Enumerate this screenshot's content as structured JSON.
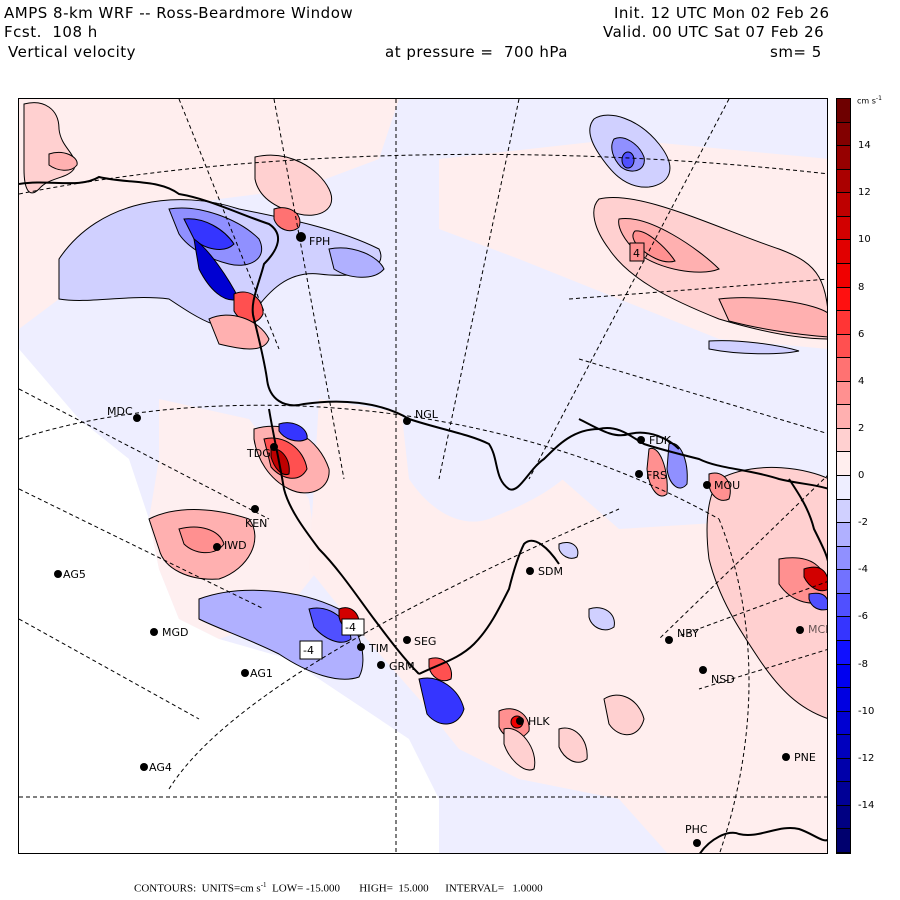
{
  "header": {
    "title": "AMPS 8-km WRF -- Ross-Beardmore Window",
    "forecast": "Fcst.  108 h",
    "variable": "Vertical velocity",
    "pressure": "at pressure =  700 hPa",
    "init": "Init. 12 UTC Mon 02 Feb 26",
    "valid": "Valid. 00 UTC Sat 07 Feb 26",
    "smoothing": "sm= 5"
  },
  "colorbar": {
    "units": "cm s",
    "units_exp": "-1",
    "levels": [
      {
        "value": 16,
        "color": "#6e0000"
      },
      {
        "value": 15,
        "color": "#820000"
      },
      {
        "value": 14,
        "color": "#960000"
      },
      {
        "value": 13,
        "color": "#aa0000"
      },
      {
        "value": 12,
        "color": "#be0000"
      },
      {
        "value": 11,
        "color": "#d20000"
      },
      {
        "value": 10,
        "color": "#e10000"
      },
      {
        "value": 9,
        "color": "#f00000"
      },
      {
        "value": 8,
        "color": "#ff1010"
      },
      {
        "value": 7,
        "color": "#ff3535"
      },
      {
        "value": 6,
        "color": "#ff5050"
      },
      {
        "value": 5,
        "color": "#ff7272"
      },
      {
        "value": 4,
        "color": "#ff9090"
      },
      {
        "value": 3,
        "color": "#ffb0b0"
      },
      {
        "value": 2,
        "color": "#ffd0d0"
      },
      {
        "value": 1,
        "color": "#ffeeee"
      },
      {
        "value": 0,
        "color": "#eeeeff"
      },
      {
        "value": -1,
        "color": "#d0d0ff"
      },
      {
        "value": -2,
        "color": "#b0b0ff"
      },
      {
        "value": -3,
        "color": "#9090ff"
      },
      {
        "value": -4,
        "color": "#7272ff"
      },
      {
        "value": -5,
        "color": "#5050ff"
      },
      {
        "value": -6,
        "color": "#3535ff"
      },
      {
        "value": -7,
        "color": "#1010ff"
      },
      {
        "value": -8,
        "color": "#0000f0"
      },
      {
        "value": -9,
        "color": "#0000e1"
      },
      {
        "value": -10,
        "color": "#0000d2"
      },
      {
        "value": -11,
        "color": "#0000be"
      },
      {
        "value": -12,
        "color": "#0000aa"
      },
      {
        "value": -13,
        "color": "#000096"
      },
      {
        "value": -14,
        "color": "#000082"
      },
      {
        "value": -15,
        "color": "#00006e"
      }
    ],
    "tick_labels": [
      "14",
      "12",
      "10",
      "8",
      "6",
      "4",
      "2",
      "0",
      "-2",
      "-4",
      "-6",
      "-8",
      "-10",
      "-12",
      "-14"
    ]
  },
  "footer": {
    "contours_label": "CONTOURS:",
    "units_label": "UNITS=cm s",
    "units_exp": "-1",
    "low": "LOW= -15.000",
    "high": "HIGH=  15.000",
    "interval": "INTERVAL=   1.0000"
  },
  "stations": [
    {
      "id": "MDC",
      "label_side": "left"
    },
    {
      "id": "NGL",
      "label_side": "right"
    },
    {
      "id": "FPH",
      "label_side": "right"
    },
    {
      "id": "TDG",
      "label_side": "right"
    },
    {
      "id": "KEN",
      "label_side": "right"
    },
    {
      "id": "IWD",
      "label_side": "right"
    },
    {
      "id": "AG5",
      "label_side": "right"
    },
    {
      "id": "MGD",
      "label_side": "right"
    },
    {
      "id": "AG1",
      "label_side": "right"
    },
    {
      "id": "AG4",
      "label_side": "right"
    },
    {
      "id": "SDM",
      "label_side": "right"
    },
    {
      "id": "FDK",
      "label_side": "right"
    },
    {
      "id": "FRS",
      "label_side": "right"
    },
    {
      "id": "MOU",
      "label_side": "right"
    },
    {
      "id": "NBY",
      "label_side": "right"
    },
    {
      "id": "NSD",
      "label_side": "right"
    },
    {
      "id": "SEG",
      "label_side": "right"
    },
    {
      "id": "GRM",
      "label_side": "right"
    },
    {
      "id": "TIM",
      "label_side": "right"
    },
    {
      "id": "HLK",
      "label_side": "right"
    },
    {
      "id": "PNE",
      "label_side": "right"
    },
    {
      "id": "PHC",
      "label_side": "above"
    },
    {
      "id": "MCM",
      "label_side": "right"
    }
  ],
  "extrema_markers": [
    {
      "value": "4",
      "sign": "positive"
    },
    {
      "value": "-4",
      "sign": "negative"
    },
    {
      "value": "-4",
      "sign": "negative"
    }
  ]
}
